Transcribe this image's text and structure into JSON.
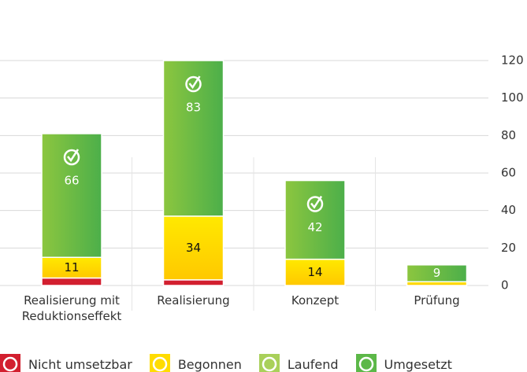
{
  "chart_data": {
    "type": "stacked-bar",
    "categories": [
      "Realisierung mit Reduktionseffekt",
      "Realisierung",
      "Konzept",
      "Prüfung"
    ],
    "series": [
      {
        "name": "Nicht umsetzbar",
        "color": "#d21f2f",
        "values": [
          4,
          3,
          null,
          null
        ]
      },
      {
        "name": "Begonnen",
        "color": "#ffdc00",
        "values": [
          11,
          34,
          14,
          2
        ]
      },
      {
        "name": "Laufend",
        "color": "#a9d05a",
        "values": [
          null,
          null,
          null,
          null
        ]
      },
      {
        "name": "Umgesetzt",
        "color": "#5cb848",
        "values": [
          66,
          83,
          42,
          9
        ]
      }
    ],
    "ylim": [
      0,
      120
    ],
    "yticks": [
      0,
      20,
      40,
      60,
      80,
      100,
      120
    ],
    "grid": true
  }
}
